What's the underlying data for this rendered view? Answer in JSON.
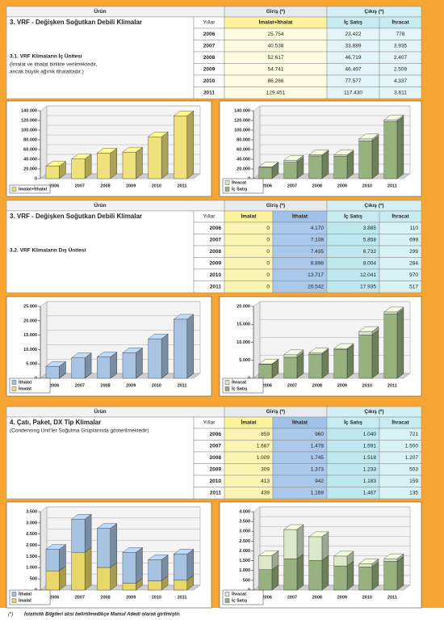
{
  "sections": [
    {
      "table": {
        "header": [
          "Ürün",
          "Giriş (*)",
          "Çıkış (*)"
        ],
        "title": "3. VRF - Değişken Soğutkan Debili Klimalar",
        "subtitle": "3.1. VRF Klimaların İç Ünitesi",
        "note": [
          "(İmalat ve ithalat birlikte verilmektedir,",
          "ancak büyük ağırlık ithalattadır.)"
        ],
        "columns": [
          "Yıllar",
          "İmalat+İthalat",
          "İç Satış",
          "İhracat"
        ],
        "rows": [
          [
            "2006",
            "25.754",
            "23.422",
            "778"
          ],
          [
            "2007",
            "40.538",
            "33.889",
            "3.935"
          ],
          [
            "2008",
            "52.617",
            "46.719",
            "2.407"
          ],
          [
            "2009",
            "54.741",
            "46.497",
            "2.509"
          ],
          [
            "2010",
            "86.266",
            "77.577",
            "4.337"
          ],
          [
            "2011",
            "129.451",
            "117.430",
            "3.611"
          ]
        ]
      },
      "charts": [
        {
          "type": "bar",
          "categories": [
            "2006",
            "2007",
            "2008",
            "2009",
            "2010",
            "2011"
          ],
          "series": [
            {
              "name": "İmalat+İthalat",
              "color": "#efe27c",
              "values": [
                25754,
                40538,
                52617,
                54741,
                86266,
                129451
              ]
            }
          ],
          "ylim": [
            0,
            140000
          ],
          "yticks": [
            0,
            {
              "value": 20000,
              "label": "20.000"
            },
            {
              "value": 40000,
              "label": "40.000"
            },
            {
              "value": 60000,
              "label": "60.000"
            },
            {
              "value": 80000,
              "label": "80.000"
            },
            {
              "value": 100000,
              "label": "100.000"
            },
            {
              "value": 120000,
              "label": "120.000"
            },
            {
              "value": 140000,
              "label": "140.000"
            }
          ],
          "grid": true,
          "legend": "bottom-left"
        },
        {
          "type": "stacked_bar",
          "categories": [
            "2006",
            "2007",
            "2008",
            "2009",
            "2010",
            "2011"
          ],
          "series": [
            {
              "name": "İç Satış",
              "color": "#98b27f",
              "values": [
                23422,
                33889,
                46719,
                46497,
                77577,
                117430
              ]
            },
            {
              "name": "İhracat",
              "color": "#dbe9c8",
              "values": [
                778,
                3935,
                2407,
                2509,
                4337,
                3611
              ]
            }
          ],
          "ylim": [
            0,
            140000
          ],
          "yticks": [
            0,
            {
              "value": 20000,
              "label": "20.000"
            },
            {
              "value": 40000,
              "label": "40.000"
            },
            {
              "value": 60000,
              "label": "60.000"
            },
            {
              "value": 80000,
              "label": "80.000"
            },
            {
              "value": 100000,
              "label": "100.000"
            },
            {
              "value": 120000,
              "label": "120.000"
            },
            {
              "value": 140000,
              "label": "140.000"
            }
          ],
          "grid": true,
          "legend": "bottom-left"
        }
      ]
    },
    {
      "table": {
        "header": [
          "Ürün",
          "Giriş (*)",
          "Çıkış (*)"
        ],
        "title": "3. VRF - Değişken Soğutkan Debili Klimalar",
        "subtitle": "3.2. VRF Klimaların Dış Ünitesi",
        "columns": [
          "Yıllar",
          "İmalat",
          "İthalat",
          "İç Satış",
          "İhracat"
        ],
        "rows": [
          [
            "2006",
            "0",
            "4.170",
            "3.885",
            "110"
          ],
          [
            "2007",
            "0",
            "7.108",
            "5.858",
            "699"
          ],
          [
            "2008",
            "0",
            "7.435",
            "6.732",
            "299"
          ],
          [
            "2009",
            "0",
            "8.898",
            "8.004",
            "284"
          ],
          [
            "2010",
            "0",
            "13.717",
            "12.041",
            "970"
          ],
          [
            "2011",
            "0",
            "20.542",
            "17.935",
            "517"
          ]
        ]
      },
      "charts": [
        {
          "type": "stacked_bar",
          "categories": [
            "2006",
            "2007",
            "2008",
            "2009",
            "2010",
            "2011"
          ],
          "series": [
            {
              "name": "İmalat",
              "color": "#f0e27a",
              "values": [
                0,
                0,
                0,
                0,
                0,
                0
              ]
            },
            {
              "name": "İthalat",
              "color": "#a9c4e2",
              "values": [
                4170,
                7108,
                7435,
                8898,
                13717,
                20542
              ]
            }
          ],
          "ylim": [
            0,
            25000
          ],
          "yticks": [
            0,
            {
              "value": 5000,
              "label": "5.000"
            },
            {
              "value": 10000,
              "label": "10.000"
            },
            {
              "value": 15000,
              "label": "15.000"
            },
            {
              "value": 20000,
              "label": "20.000"
            },
            {
              "value": 25000,
              "label": "25.000"
            }
          ],
          "grid": true,
          "legend": "bottom-left"
        },
        {
          "type": "stacked_bar",
          "categories": [
            "2006",
            "2007",
            "2008",
            "2009",
            "2010",
            "2011"
          ],
          "series": [
            {
              "name": "İç Satış",
              "color": "#98b27f",
              "values": [
                3885,
                5858,
                6732,
                8004,
                12041,
                17935
              ]
            },
            {
              "name": "İhracat",
              "color": "#dbe9c8",
              "values": [
                110,
                699,
                299,
                284,
                970,
                517
              ]
            }
          ],
          "ylim": [
            0,
            20000
          ],
          "yticks": [
            0,
            {
              "value": 5000,
              "label": "5.000"
            },
            {
              "value": 10000,
              "label": "10.000"
            },
            {
              "value": 15000,
              "label": "15.000"
            },
            {
              "value": 20000,
              "label": "20.000"
            }
          ],
          "grid": true,
          "legend": "bottom-left"
        }
      ]
    },
    {
      "table": {
        "header": [
          "Ürün",
          "Giriş (*)",
          "Çıkış (*)"
        ],
        "title": "4. Çatı, Paket, DX Tip Klimalar",
        "note": [
          "(Condensing Unit'ler Soğutma Gruplarında gösterilmektedir)"
        ],
        "columns": [
          "Yıllar",
          "İmalat",
          "İthalat",
          "İç Satış",
          "İhracat"
        ],
        "rows": [
          [
            "2006",
            "859",
            "960",
            "1.040",
            "721"
          ],
          [
            "2007",
            "1.687",
            "1.478",
            "1.591",
            "1.500"
          ],
          [
            "2008",
            "1.009",
            "1.745",
            "1.518",
            "1.207"
          ],
          [
            "2009",
            "309",
            "1.373",
            "1.233",
            "503"
          ],
          [
            "2010",
            "413",
            "942",
            "1.183",
            "159"
          ],
          [
            "2011",
            "439",
            "1.169",
            "1.467",
            "135"
          ]
        ]
      },
      "charts": [
        {
          "type": "stacked_bar",
          "categories": [
            "2006",
            "2007",
            "2008",
            "2009",
            "2010",
            "2011"
          ],
          "series": [
            {
              "name": "İmalat",
              "color": "#e8d86a",
              "values": [
                859,
                1687,
                1009,
                309,
                413,
                439
              ]
            },
            {
              "name": "İthalat",
              "color": "#a7c3e2",
              "values": [
                960,
                1478,
                1745,
                1373,
                942,
                1169
              ]
            }
          ],
          "ylim": [
            0,
            3500
          ],
          "yticks": [
            0,
            500,
            {
              "value": 1000,
              "label": "1.000"
            },
            {
              "value": 1500,
              "label": "1.500"
            },
            {
              "value": 2000,
              "label": "2.000"
            },
            {
              "value": 2500,
              "label": "2.500"
            },
            {
              "value": 3000,
              "label": "3.000"
            },
            {
              "value": 3500,
              "label": "3.500"
            }
          ],
          "grid": true,
          "legend": "bottom-left"
        },
        {
          "type": "stacked_bar",
          "categories": [
            "2006",
            "2007",
            "2008",
            "2009",
            "2010",
            "2011"
          ],
          "series": [
            {
              "name": "İç Satış",
              "color": "#98b27f",
              "values": [
                1040,
                1591,
                1518,
                1233,
                1183,
                1467
              ]
            },
            {
              "name": "İhracat",
              "color": "#dbe9c8",
              "values": [
                721,
                1500,
                1207,
                503,
                159,
                135
              ]
            }
          ],
          "ylim": [
            0,
            4000
          ],
          "yticks": [
            0,
            500,
            {
              "value": 1000,
              "label": "1.000"
            },
            {
              "value": 1500,
              "label": "1.500"
            },
            {
              "value": 2000,
              "label": "2.000"
            },
            {
              "value": 2500,
              "label": "2.500"
            },
            {
              "value": 3000,
              "label": "3.000"
            },
            {
              "value": 3500,
              "label": "3.500"
            },
            {
              "value": 4000,
              "label": "4.000"
            }
          ],
          "grid": true,
          "legend": "bottom-left"
        }
      ]
    }
  ],
  "footnote": {
    "mark": "(*)",
    "text": "İstatistik Bilgileri aksi belirtilmedikçe Mamul Adedi olarak girilmiştir."
  }
}
